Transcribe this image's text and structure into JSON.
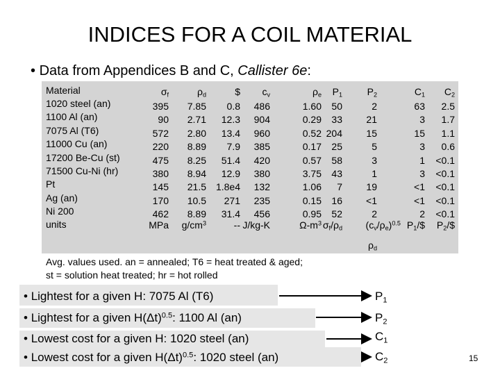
{
  "title": "INDICES FOR A COIL MATERIAL",
  "subtitle": {
    "text": "Data from Appendices B and C, ",
    "italic": "Callister 6e",
    "end": ":"
  },
  "table": {
    "material_header": "Material",
    "materials": [
      "1020 steel (an)",
      "1100 Al (an)",
      "7075 Al (T6)",
      "11000 Cu (an)",
      "17200 Be-Cu (st)",
      "71500 Cu-Ni (hr)",
      "Pt",
      "Ag (an)",
      "Ni 200"
    ],
    "units_label": "units",
    "headers": [
      {
        "main": "σ",
        "sub": "f"
      },
      {
        "main": "ρ",
        "sub": "d"
      },
      {
        "main": "$"
      },
      {
        "main": "c",
        "sub": "v"
      },
      {
        "main": "ρ",
        "sub": "e"
      },
      {
        "main": "P",
        "sub": "1"
      },
      {
        "main": "P",
        "sub": "2"
      },
      {
        "main": "C",
        "sub": "1"
      },
      {
        "main": "C",
        "sub": "2"
      }
    ],
    "rows": [
      [
        "395",
        "7.85",
        "0.8",
        "486",
        "1.60",
        "50",
        "2",
        "63",
        "2.5"
      ],
      [
        "90",
        "2.71",
        "12.3",
        "904",
        "0.29",
        "33",
        "21",
        "3",
        "1.7"
      ],
      [
        "572",
        "2.80",
        "13.4",
        "960",
        "0.52",
        "204",
        "15",
        "15",
        "1.1"
      ],
      [
        "220",
        "8.89",
        "7.9",
        "385",
        "0.17",
        "25",
        "5",
        "3",
        "0.6"
      ],
      [
        "475",
        "8.25",
        "51.4",
        "420",
        "0.57",
        "58",
        "3",
        "1",
        "<0.1"
      ],
      [
        "380",
        "8.94",
        "12.9",
        "380",
        "3.75",
        "43",
        "1",
        "3",
        "<0.1"
      ],
      [
        "145",
        "21.5",
        "1.8e4",
        "132",
        "1.06",
        "7",
        "19",
        "<1",
        "<0.1"
      ],
      [
        "170",
        "10.5",
        "271",
        "235",
        "0.15",
        "16",
        "<1",
        "<1",
        "<0.1"
      ],
      [
        "462",
        "8.89",
        "31.4",
        "456",
        "0.95",
        "52",
        "2",
        "2",
        "<0.1"
      ]
    ],
    "units": [
      [
        {
          "t": "MPa"
        }
      ],
      [
        {
          "t": "g/cm"
        },
        {
          "t": "3",
          "k": "sup"
        }
      ],
      [
        {
          "t": "--"
        }
      ],
      [
        {
          "t": "J/kg-K"
        }
      ],
      [
        {
          "t": "Ω-m"
        },
        {
          "t": "3",
          "k": "sup"
        }
      ],
      [
        {
          "t": "σ"
        },
        {
          "t": "f",
          "k": "sub"
        },
        {
          "t": "/ρ"
        },
        {
          "t": "d",
          "k": "sub"
        }
      ],
      [
        {
          "t": "(c"
        },
        {
          "t": "v",
          "k": "sub"
        },
        {
          "t": "/ρ"
        },
        {
          "t": "e",
          "k": "sub"
        },
        {
          "t": ")"
        },
        {
          "t": "0.5",
          "k": "sup"
        }
      ],
      [
        {
          "t": "P"
        },
        {
          "t": "1",
          "k": "sub"
        },
        {
          "t": "/$"
        }
      ],
      [
        {
          "t": "P"
        },
        {
          "t": "2",
          "k": "sub"
        },
        {
          "t": "/$"
        }
      ]
    ],
    "p2_unit_denominator": [
      {
        "t": "ρ"
      },
      {
        "t": "d",
        "k": "sub"
      }
    ]
  },
  "footnote": [
    "Avg. values used.  an = annealed; T6 = heat treated & aged;",
    "st = solution heat treated; hr = hot rolled"
  ],
  "bullets": [
    {
      "pre": "Lightest for a given H:  7075 Al (T6)",
      "target": {
        "main": "P",
        "sub": "1"
      }
    },
    {
      "pre": "Lightest for a given H(Δt)",
      "sup": "0.5",
      "post": ":  1100 Al (an)",
      "target": {
        "main": "P",
        "sub": "2"
      }
    },
    {
      "pre": "Lowest cost for a given H:  1020 steel (an)",
      "target": {
        "main": "C",
        "sub": "1"
      }
    },
    {
      "pre": "Lowest cost for a given H(Δt)",
      "sup": "0.5",
      "post": ":  1020 steel (an)",
      "target": {
        "main": "C",
        "sub": "2"
      }
    }
  ],
  "page_number": "15"
}
